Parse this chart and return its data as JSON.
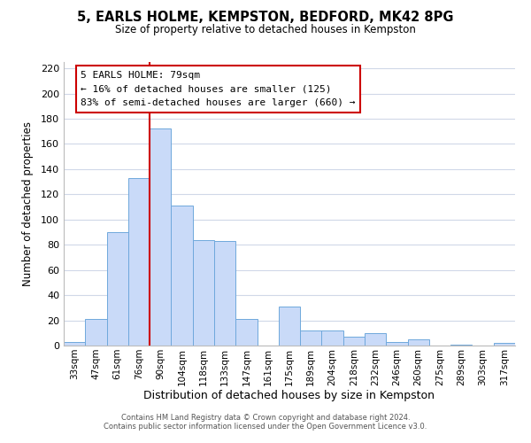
{
  "title": "5, EARLS HOLME, KEMPSTON, BEDFORD, MK42 8PG",
  "subtitle": "Size of property relative to detached houses in Kempston",
  "xlabel": "Distribution of detached houses by size in Kempston",
  "ylabel": "Number of detached properties",
  "bar_labels": [
    "33sqm",
    "47sqm",
    "61sqm",
    "76sqm",
    "90sqm",
    "104sqm",
    "118sqm",
    "133sqm",
    "147sqm",
    "161sqm",
    "175sqm",
    "189sqm",
    "204sqm",
    "218sqm",
    "232sqm",
    "246sqm",
    "260sqm",
    "275sqm",
    "289sqm",
    "303sqm",
    "317sqm"
  ],
  "bar_values": [
    3,
    21,
    90,
    133,
    172,
    111,
    84,
    83,
    21,
    0,
    31,
    12,
    12,
    7,
    10,
    3,
    5,
    0,
    1,
    0,
    2
  ],
  "bar_color": "#c9daf8",
  "bar_edgecolor": "#6fa8dc",
  "vline_x": 3.5,
  "vline_color": "#cc0000",
  "annotation_title": "5 EARLS HOLME: 79sqm",
  "annotation_line1": "← 16% of detached houses are smaller (125)",
  "annotation_line2": "83% of semi-detached houses are larger (660) →",
  "annotation_box_edgecolor": "#cc0000",
  "ylim": [
    0,
    225
  ],
  "yticks": [
    0,
    20,
    40,
    60,
    80,
    100,
    120,
    140,
    160,
    180,
    200,
    220
  ],
  "footer1": "Contains HM Land Registry data © Crown copyright and database right 2024.",
  "footer2": "Contains public sector information licensed under the Open Government Licence v3.0.",
  "background_color": "#ffffff",
  "grid_color": "#d0d8e8"
}
